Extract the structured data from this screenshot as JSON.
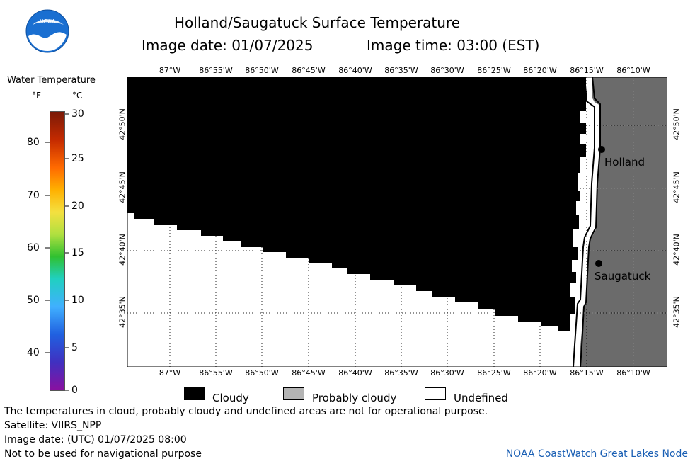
{
  "header": {
    "title": "Holland/Saugatuck Surface Temperature",
    "image_date_label": "Image date: 01/07/2025",
    "image_time_label": "Image time: 03:00 (EST)"
  },
  "logo": {
    "text": "NOAA"
  },
  "color_scale": {
    "title": "Water Temperature",
    "unit_f": "°F",
    "unit_c": "°C",
    "fahrenheit_ticks": [
      "80",
      "70",
      "60",
      "50",
      "40"
    ],
    "celsius_ticks": [
      "30",
      "25",
      "20",
      "15",
      "10",
      "5",
      "0"
    ]
  },
  "map": {
    "lon_labels": [
      "87°W",
      "86°55'W",
      "86°50'W",
      "86°45'W",
      "86°40'W",
      "86°35'W",
      "86°30'W",
      "86°25'W",
      "86°20'W",
      "86°15'W",
      "86°10'W"
    ],
    "lat_labels": [
      "42°50'N",
      "42°45'N",
      "42°40'N",
      "42°35'N"
    ],
    "cities": [
      {
        "name": "Holland"
      },
      {
        "name": "Saugatuck"
      }
    ],
    "colors": {
      "cloudy": "#000000",
      "land": "#6b6b6b",
      "undefined": "#ffffff"
    }
  },
  "legend": {
    "items": [
      {
        "label": "Cloudy",
        "color": "#000000"
      },
      {
        "label": "Probably cloudy",
        "color": "#b4b4b4"
      },
      {
        "label": "Undefined",
        "color": "#ffffff"
      }
    ]
  },
  "footer": {
    "note": "The temperatures in cloud, probably cloudy and undefined areas are not for operational purpose.",
    "satellite": "Satellite: VIIRS_NPP",
    "utc_date": "Image date: (UTC) 01/07/2025  08:00",
    "nav_warning": "Not to be used for navigational purpose",
    "credit": "NOAA CoastWatch Great Lakes Node"
  }
}
